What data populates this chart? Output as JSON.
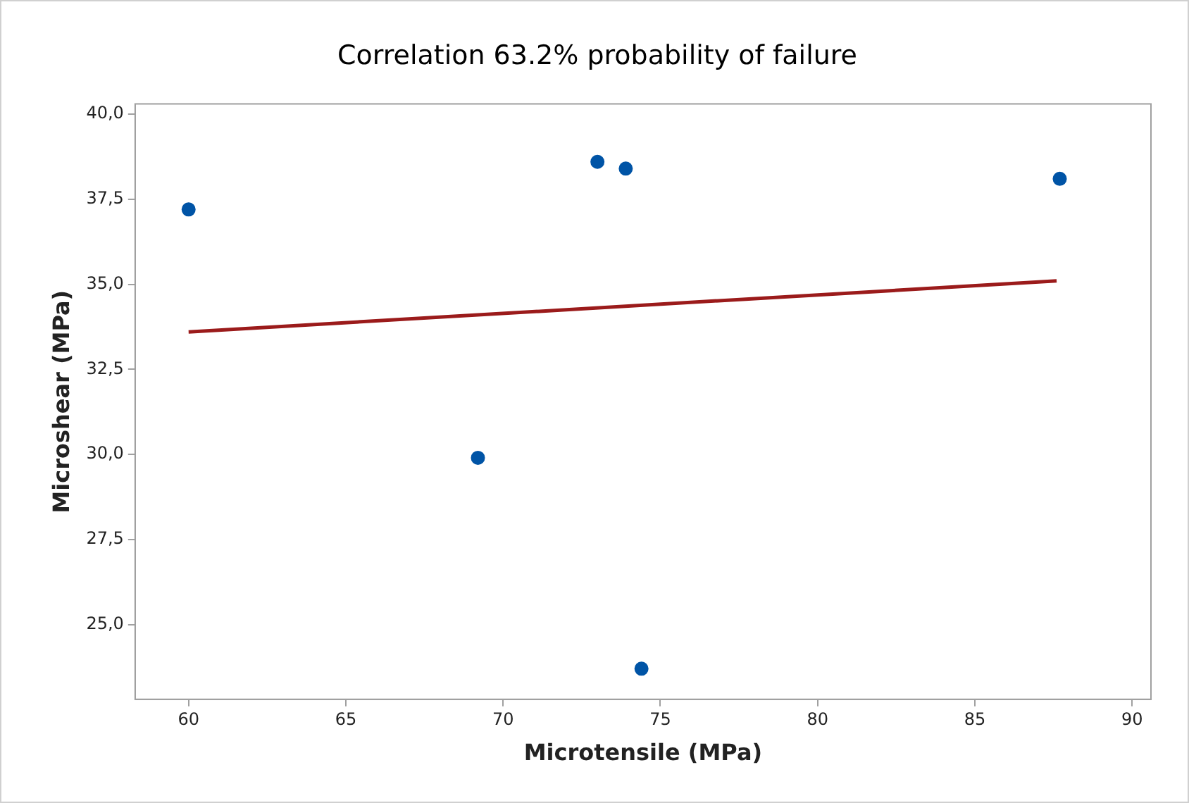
{
  "chart_data": {
    "type": "scatter",
    "title": "Correlation 63.2% probability of failure",
    "xlabel": "Microtensile (MPa)",
    "ylabel": "Microshear (MPa)",
    "series": [
      {
        "color": "#0054a6",
        "marker": "circle",
        "x": [
          60,
          69.2,
          73.0,
          73.9,
          74.4,
          87.7
        ],
        "values": [
          37.2,
          29.9,
          38.6,
          38.4,
          23.7,
          38.1
        ]
      },
      {
        "type": "line",
        "color": "#9b1b1b",
        "line_style": "solid",
        "x": [
          60,
          87.6
        ],
        "values": [
          33.6,
          35.1
        ]
      }
    ],
    "xlim": [
      58.3,
      90.6
    ],
    "xticks": [
      60,
      65,
      70,
      75,
      80,
      85,
      90
    ],
    "ylim": [
      22.8,
      40.3
    ],
    "yticks": [
      {
        "value": 25,
        "label": "25,0"
      },
      {
        "value": 27.5,
        "label": "27,5"
      },
      {
        "value": 30,
        "label": "30,0"
      },
      {
        "value": 32.5,
        "label": "32,5"
      },
      {
        "value": 35,
        "label": "35,0"
      },
      {
        "value": 37.5,
        "label": "37,5"
      },
      {
        "value": 40,
        "label": "40,0"
      }
    ],
    "grid": false,
    "legend": false
  }
}
